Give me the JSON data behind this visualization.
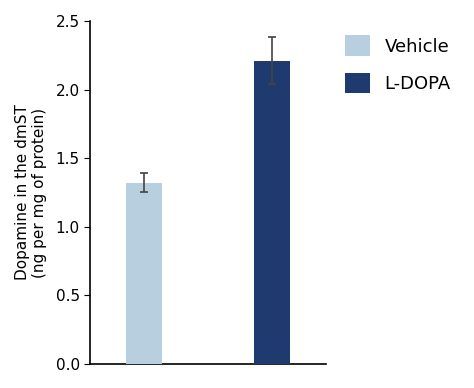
{
  "categories": [
    "Vehicle",
    "L-DOPA"
  ],
  "values": [
    1.32,
    2.21
  ],
  "errors": [
    0.07,
    0.17
  ],
  "bar_colors": [
    "#b8cfe0",
    "#1e3a6e"
  ],
  "bar_width": 0.28,
  "bar_positions": [
    1,
    2
  ],
  "ylim": [
    0,
    2.5
  ],
  "yticks": [
    0.0,
    0.5,
    1.0,
    1.5,
    2.0,
    2.5
  ],
  "ylabel": "Dopamine in the dmST\n(ng per mg of protein)",
  "legend_labels": [
    "Vehicle",
    "L-DOPA"
  ],
  "legend_colors": [
    "#b8cfe0",
    "#1e3a6e"
  ],
  "errorbar_color": "#444444",
  "errorbar_capsize": 3,
  "errorbar_linewidth": 1.2,
  "background_color": "#ffffff",
  "ylabel_fontsize": 11,
  "tick_fontsize": 11,
  "legend_fontsize": 13
}
